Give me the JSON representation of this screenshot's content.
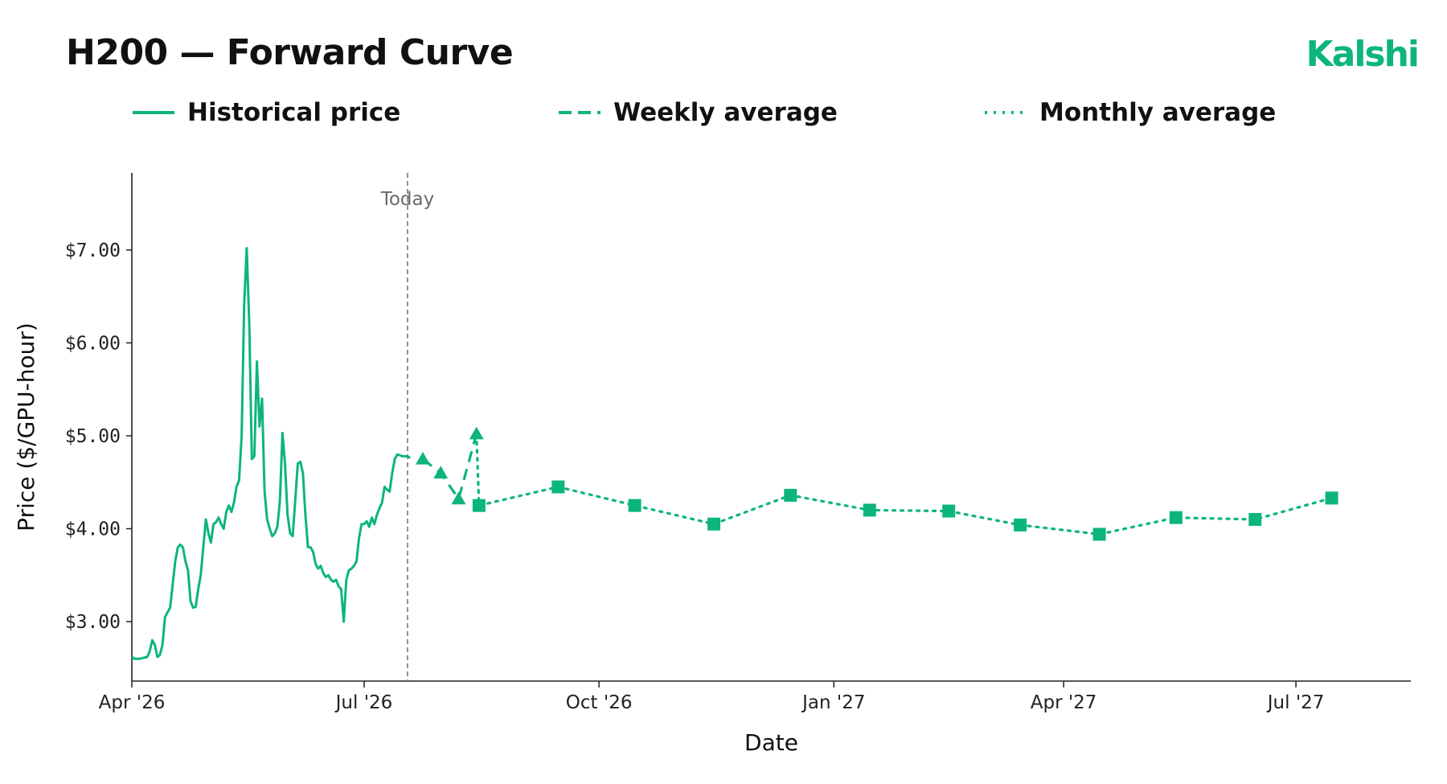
{
  "header": {
    "title": "H200 — Forward Curve",
    "brand": "Kalshi"
  },
  "colors": {
    "accent": "#0db57d",
    "axis": "#222222",
    "today_line": "#777777",
    "today_label": "#6b6b6b"
  },
  "legend": [
    {
      "label": "Historical price",
      "style": "solid"
    },
    {
      "label": "Weekly average",
      "style": "dashed"
    },
    {
      "label": "Monthly average",
      "style": "dotted"
    }
  ],
  "chart_data": {
    "type": "line",
    "title": "",
    "xlabel": "Date",
    "ylabel": "Price ($/GPU-hour)",
    "x_axis_type": "date",
    "xlim": [
      "2026-04-01",
      "2027-08-15"
    ],
    "ylim": [
      2.36,
      7.83
    ],
    "x_ticks": [
      {
        "date": "2026-04-01",
        "label": "Apr '26"
      },
      {
        "date": "2026-07-01",
        "label": "Jul '26"
      },
      {
        "date": "2026-10-01",
        "label": "Oct '26"
      },
      {
        "date": "2027-01-01",
        "label": "Jan '27"
      },
      {
        "date": "2027-04-01",
        "label": "Apr '27"
      },
      {
        "date": "2027-07-01",
        "label": "Jul '27"
      }
    ],
    "y_ticks": [
      {
        "value": 3.0,
        "label": "$3.00"
      },
      {
        "value": 4.0,
        "label": "$4.00"
      },
      {
        "value": 5.0,
        "label": "$5.00"
      },
      {
        "value": 6.0,
        "label": "$6.00"
      },
      {
        "value": 7.0,
        "label": "$7.00"
      }
    ],
    "grid": false,
    "legend_position": "top",
    "annotations": [
      {
        "type": "vline",
        "date": "2026-07-18",
        "label": "Today"
      }
    ],
    "series": [
      {
        "name": "Historical price",
        "style": "solid",
        "marker": "none",
        "points": [
          [
            "2026-04-01",
            2.62
          ],
          [
            "2026-04-02",
            2.6
          ],
          [
            "2026-04-04",
            2.6
          ],
          [
            "2026-04-07",
            2.62
          ],
          [
            "2026-04-08",
            2.68
          ],
          [
            "2026-04-09",
            2.8
          ],
          [
            "2026-04-10",
            2.75
          ],
          [
            "2026-04-11",
            2.62
          ],
          [
            "2026-04-12",
            2.64
          ],
          [
            "2026-04-13",
            2.75
          ],
          [
            "2026-04-14",
            3.05
          ],
          [
            "2026-04-16",
            3.15
          ],
          [
            "2026-04-17",
            3.4
          ],
          [
            "2026-04-18",
            3.65
          ],
          [
            "2026-04-19",
            3.8
          ],
          [
            "2026-04-20",
            3.83
          ],
          [
            "2026-04-21",
            3.8
          ],
          [
            "2026-04-22",
            3.65
          ],
          [
            "2026-04-23",
            3.55
          ],
          [
            "2026-04-24",
            3.22
          ],
          [
            "2026-04-25",
            3.15
          ],
          [
            "2026-04-26",
            3.16
          ],
          [
            "2026-04-27",
            3.35
          ],
          [
            "2026-04-28",
            3.5
          ],
          [
            "2026-04-29",
            3.8
          ],
          [
            "2026-04-30",
            4.1
          ],
          [
            "2026-05-01",
            3.95
          ],
          [
            "2026-05-02",
            3.85
          ],
          [
            "2026-05-03",
            4.05
          ],
          [
            "2026-05-04",
            4.07
          ],
          [
            "2026-05-05",
            4.12
          ],
          [
            "2026-05-06",
            4.05
          ],
          [
            "2026-05-07",
            4.0
          ],
          [
            "2026-05-08",
            4.18
          ],
          [
            "2026-05-09",
            4.25
          ],
          [
            "2026-05-10",
            4.18
          ],
          [
            "2026-05-11",
            4.28
          ],
          [
            "2026-05-12",
            4.45
          ],
          [
            "2026-05-13",
            4.52
          ],
          [
            "2026-05-14",
            5.0
          ],
          [
            "2026-05-15",
            6.4
          ],
          [
            "2026-05-16",
            7.02
          ],
          [
            "2026-05-17",
            6.2
          ],
          [
            "2026-05-18",
            4.75
          ],
          [
            "2026-05-19",
            4.78
          ],
          [
            "2026-05-20",
            5.8
          ],
          [
            "2026-05-21",
            5.1
          ],
          [
            "2026-05-22",
            5.4
          ],
          [
            "2026-05-23",
            4.4
          ],
          [
            "2026-05-24",
            4.1
          ],
          [
            "2026-05-25",
            4.0
          ],
          [
            "2026-05-26",
            3.92
          ],
          [
            "2026-05-27",
            3.95
          ],
          [
            "2026-05-28",
            4.02
          ],
          [
            "2026-05-29",
            4.3
          ],
          [
            "2026-05-30",
            5.03
          ],
          [
            "2026-05-31",
            4.7
          ],
          [
            "2026-06-01",
            4.15
          ],
          [
            "2026-06-02",
            3.95
          ],
          [
            "2026-06-03",
            3.92
          ],
          [
            "2026-06-04",
            4.3
          ],
          [
            "2026-06-05",
            4.7
          ],
          [
            "2026-06-06",
            4.72
          ],
          [
            "2026-06-07",
            4.6
          ],
          [
            "2026-06-08",
            4.15
          ],
          [
            "2026-06-09",
            3.8
          ],
          [
            "2026-06-10",
            3.8
          ],
          [
            "2026-06-11",
            3.75
          ],
          [
            "2026-06-12",
            3.62
          ],
          [
            "2026-06-13",
            3.57
          ],
          [
            "2026-06-14",
            3.6
          ],
          [
            "2026-06-15",
            3.52
          ],
          [
            "2026-06-16",
            3.48
          ],
          [
            "2026-06-17",
            3.5
          ],
          [
            "2026-06-18",
            3.45
          ],
          [
            "2026-06-19",
            3.43
          ],
          [
            "2026-06-20",
            3.45
          ],
          [
            "2026-06-21",
            3.38
          ],
          [
            "2026-06-22",
            3.35
          ],
          [
            "2026-06-23",
            3.0
          ],
          [
            "2026-06-24",
            3.45
          ],
          [
            "2026-06-25",
            3.55
          ],
          [
            "2026-06-26",
            3.57
          ],
          [
            "2026-06-27",
            3.6
          ],
          [
            "2026-06-28",
            3.65
          ],
          [
            "2026-06-29",
            3.9
          ],
          [
            "2026-06-30",
            4.05
          ],
          [
            "2026-07-01",
            4.05
          ],
          [
            "2026-07-02",
            4.08
          ],
          [
            "2026-07-03",
            4.02
          ],
          [
            "2026-07-04",
            4.12
          ],
          [
            "2026-07-05",
            4.05
          ],
          [
            "2026-07-06",
            4.15
          ],
          [
            "2026-07-07",
            4.22
          ],
          [
            "2026-07-08",
            4.28
          ],
          [
            "2026-07-09",
            4.45
          ],
          [
            "2026-07-10",
            4.42
          ],
          [
            "2026-07-11",
            4.4
          ],
          [
            "2026-07-12",
            4.6
          ],
          [
            "2026-07-13",
            4.75
          ],
          [
            "2026-07-14",
            4.8
          ],
          [
            "2026-07-16",
            4.78
          ],
          [
            "2026-07-18",
            4.78
          ],
          [
            "2026-07-19",
            4.76
          ]
        ]
      },
      {
        "name": "Weekly average",
        "style": "dashed",
        "marker": "triangle",
        "points": [
          [
            "2026-07-24",
            4.75
          ],
          [
            "2026-07-31",
            4.6
          ],
          [
            "2026-08-07",
            4.32
          ],
          [
            "2026-08-14",
            5.02
          ]
        ]
      },
      {
        "name": "Monthly average",
        "style": "dotted",
        "marker": "square",
        "points": [
          [
            "2026-08-14",
            5.02
          ],
          [
            "2026-08-15",
            4.25
          ],
          [
            "2026-09-15",
            4.45
          ],
          [
            "2026-10-15",
            4.25
          ],
          [
            "2026-11-15",
            4.05
          ],
          [
            "2026-12-15",
            4.36
          ],
          [
            "2027-01-15",
            4.2
          ],
          [
            "2027-02-15",
            4.19
          ],
          [
            "2027-03-15",
            4.04
          ],
          [
            "2027-04-15",
            3.94
          ],
          [
            "2027-05-15",
            4.12
          ],
          [
            "2027-06-15",
            4.1
          ],
          [
            "2027-07-15",
            4.33
          ]
        ]
      }
    ]
  }
}
